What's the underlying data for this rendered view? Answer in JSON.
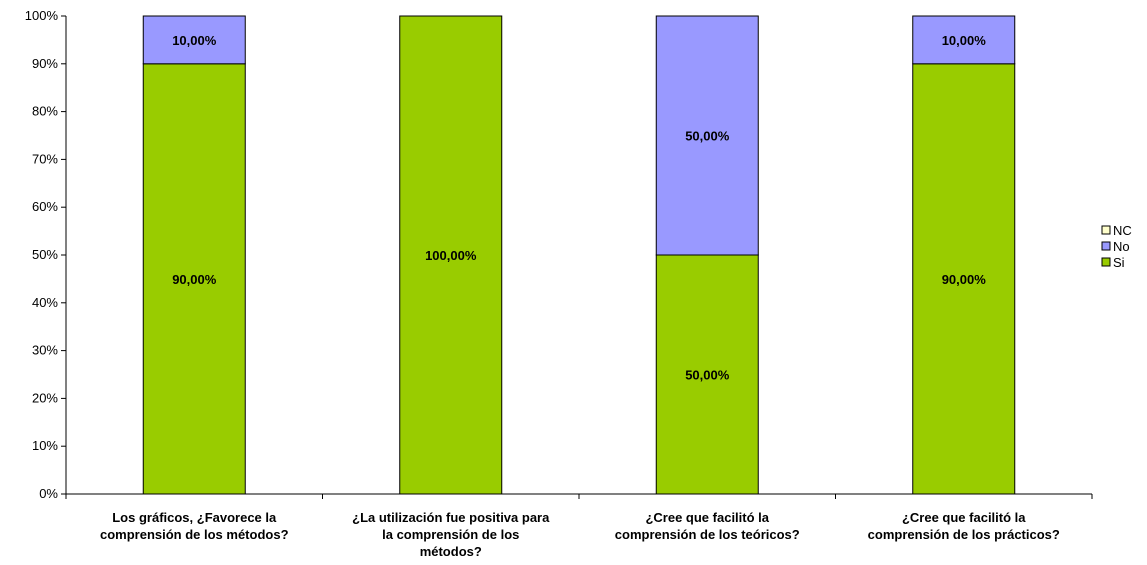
{
  "chart_data": {
    "type": "bar",
    "stacked": true,
    "percent_stacked": true,
    "categories": [
      [
        "Los gráficos, ¿Favorece la",
        "comprensión de los métodos?"
      ],
      [
        "¿La utilización fue positiva para",
        "la comprensión de los",
        "métodos?"
      ],
      [
        "¿Cree que facilitó la",
        "comprensión de los teóricos?"
      ],
      [
        "¿Cree que facilitó la",
        "comprensión de los prácticos?"
      ]
    ],
    "series": [
      {
        "name": "Si",
        "color": "#99cc00",
        "values": [
          90,
          100,
          50,
          90
        ],
        "labels": [
          "90,00%",
          "100,00%",
          "50,00%",
          "90,00%"
        ]
      },
      {
        "name": "No",
        "color": "#9999ff",
        "values": [
          10,
          0,
          50,
          10
        ],
        "labels": [
          "10,00%",
          "",
          "50,00%",
          "10,00%"
        ]
      },
      {
        "name": "NC",
        "color": "#ffffcc",
        "values": [
          0,
          0,
          0,
          0
        ],
        "labels": [
          "",
          "",
          "",
          ""
        ]
      }
    ],
    "legend_order": [
      "NC",
      "No",
      "Si"
    ],
    "yticks": [
      "0%",
      "10%",
      "20%",
      "30%",
      "40%",
      "50%",
      "60%",
      "70%",
      "80%",
      "90%",
      "100%"
    ],
    "ylim": [
      0,
      100
    ],
    "legend": "right",
    "grid": false
  }
}
